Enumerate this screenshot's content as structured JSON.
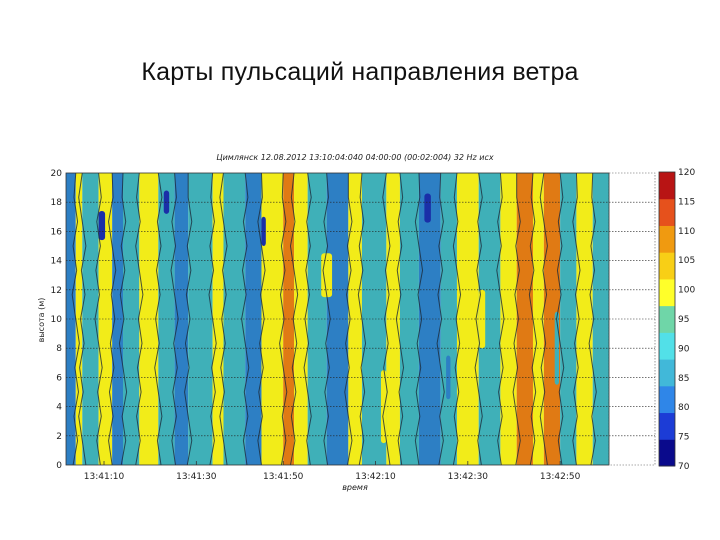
{
  "slide": {
    "title": "Карты пульсаций направления ветра"
  },
  "chart_data": {
    "type": "heatmap",
    "title": "Цимлянск 12.08.2012 13:10:04:040 04:00:00 (00:02:004) 32 Hz исх",
    "xlabel": "время",
    "ylabel": "высота (м)",
    "x_ticks": [
      "13:41:10",
      "13:41:30",
      "13:41:50",
      "13:42:10",
      "13:42:30",
      "13:42:50"
    ],
    "y_ticks": [
      0,
      2,
      4,
      6,
      8,
      10,
      12,
      14,
      16,
      18,
      20
    ],
    "ylim": [
      0,
      20
    ],
    "grid": "dotted horizontal lines",
    "colorbar": {
      "ticks": [
        70,
        75,
        80,
        85,
        90,
        95,
        100,
        105,
        110,
        115,
        120
      ],
      "colors": [
        "#0a0a8c",
        "#1c3cd6",
        "#2f86e8",
        "#41b8d9",
        "#52e0e8",
        "#6fd6a8",
        "#ffff2a",
        "#f8cf16",
        "#f09a10",
        "#e6511c",
        "#b81414"
      ]
    },
    "columns": [
      {
        "x0": 0.0,
        "x1": 0.018,
        "level": "blue"
      },
      {
        "x0": 0.018,
        "x1": 0.03,
        "level": "yellow"
      },
      {
        "x0": 0.03,
        "x1": 0.06,
        "level": "teal"
      },
      {
        "x0": 0.06,
        "x1": 0.085,
        "level": "yellow"
      },
      {
        "x0": 0.085,
        "x1": 0.105,
        "level": "blue"
      },
      {
        "x0": 0.105,
        "x1": 0.135,
        "level": "teal"
      },
      {
        "x0": 0.135,
        "x1": 0.17,
        "level": "yellow"
      },
      {
        "x0": 0.17,
        "x1": 0.2,
        "level": "teal"
      },
      {
        "x0": 0.2,
        "x1": 0.225,
        "level": "blue"
      },
      {
        "x0": 0.225,
        "x1": 0.27,
        "level": "teal"
      },
      {
        "x0": 0.27,
        "x1": 0.29,
        "level": "yellow"
      },
      {
        "x0": 0.29,
        "x1": 0.33,
        "level": "teal"
      },
      {
        "x0": 0.33,
        "x1": 0.36,
        "level": "blue"
      },
      {
        "x0": 0.36,
        "x1": 0.4,
        "level": "yellow"
      },
      {
        "x0": 0.4,
        "x1": 0.42,
        "level": "orange"
      },
      {
        "x0": 0.42,
        "x1": 0.445,
        "level": "yellow"
      },
      {
        "x0": 0.445,
        "x1": 0.48,
        "level": "teal"
      },
      {
        "x0": 0.48,
        "x1": 0.52,
        "level": "blue"
      },
      {
        "x0": 0.52,
        "x1": 0.545,
        "level": "yellow"
      },
      {
        "x0": 0.545,
        "x1": 0.59,
        "level": "teal"
      },
      {
        "x0": 0.59,
        "x1": 0.615,
        "level": "yellow"
      },
      {
        "x0": 0.615,
        "x1": 0.65,
        "level": "teal"
      },
      {
        "x0": 0.65,
        "x1": 0.69,
        "level": "blue"
      },
      {
        "x0": 0.69,
        "x1": 0.72,
        "level": "teal"
      },
      {
        "x0": 0.72,
        "x1": 0.76,
        "level": "yellow"
      },
      {
        "x0": 0.76,
        "x1": 0.8,
        "level": "teal"
      },
      {
        "x0": 0.8,
        "x1": 0.83,
        "level": "yellow"
      },
      {
        "x0": 0.83,
        "x1": 0.86,
        "level": "orange"
      },
      {
        "x0": 0.86,
        "x1": 0.88,
        "level": "yellow"
      },
      {
        "x0": 0.88,
        "x1": 0.91,
        "level": "orange"
      },
      {
        "x0": 0.91,
        "x1": 0.94,
        "level": "teal"
      },
      {
        "x0": 0.94,
        "x1": 0.97,
        "level": "yellow"
      },
      {
        "x0": 0.97,
        "x1": 1.0,
        "level": "teal"
      }
    ],
    "blobs": [
      {
        "x": 0.06,
        "y": 0.82,
        "w": 0.012,
        "h": 0.1,
        "level": "navy"
      },
      {
        "x": 0.18,
        "y": 0.9,
        "w": 0.01,
        "h": 0.08,
        "level": "navy"
      },
      {
        "x": 0.27,
        "y": 0.25,
        "w": 0.015,
        "h": 0.2,
        "level": "yellow"
      },
      {
        "x": 0.36,
        "y": 0.8,
        "w": 0.008,
        "h": 0.1,
        "level": "navy"
      },
      {
        "x": 0.47,
        "y": 0.65,
        "w": 0.02,
        "h": 0.15,
        "level": "yellow"
      },
      {
        "x": 0.58,
        "y": 0.2,
        "w": 0.01,
        "h": 0.25,
        "level": "yellow"
      },
      {
        "x": 0.66,
        "y": 0.88,
        "w": 0.012,
        "h": 0.1,
        "level": "navy"
      },
      {
        "x": 0.7,
        "y": 0.3,
        "w": 0.008,
        "h": 0.15,
        "level": "blue"
      },
      {
        "x": 0.76,
        "y": 0.5,
        "w": 0.012,
        "h": 0.2,
        "level": "yellow"
      },
      {
        "x": 0.9,
        "y": 0.4,
        "w": 0.008,
        "h": 0.25,
        "level": "teal"
      }
    ],
    "level_colors": {
      "navy": "#1a2fa8",
      "blue": "#2d7fc4",
      "teal": "#3fb0b8",
      "yellow": "#f2ec19",
      "orange": "#e07a14"
    }
  }
}
